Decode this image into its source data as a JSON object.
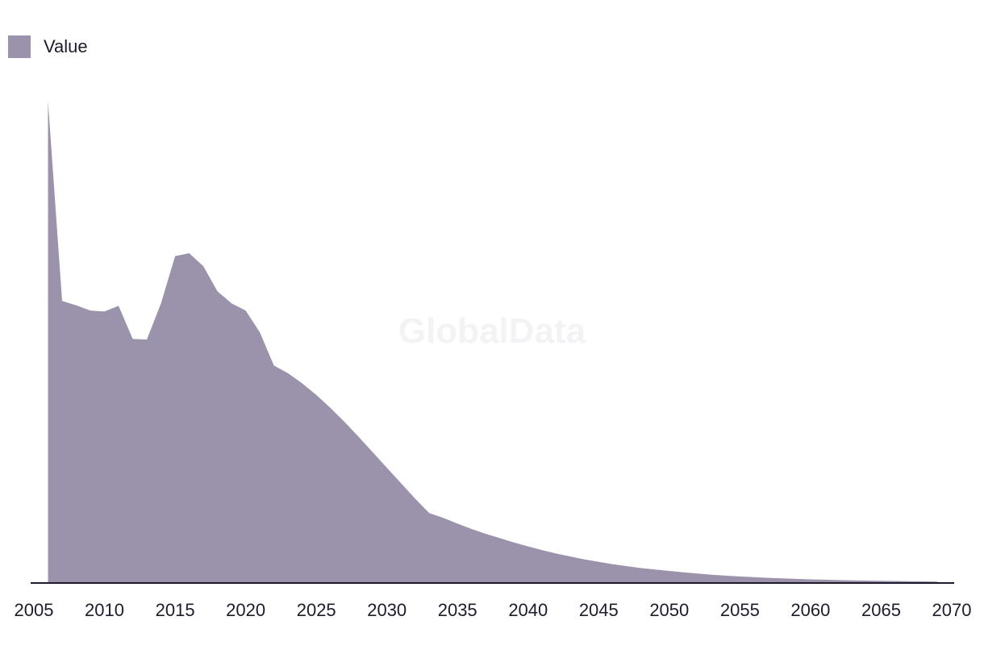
{
  "chart_data": {
    "type": "area",
    "watermark": "GlobalData",
    "series": [
      {
        "name": "Value",
        "color": "#9b93ab",
        "x": [
          2006,
          2007,
          2008,
          2009,
          2010,
          2011,
          2012,
          2013,
          2014,
          2015,
          2016,
          2017,
          2018,
          2019,
          2020,
          2021,
          2022,
          2023,
          2024,
          2025,
          2026,
          2027,
          2028,
          2029,
          2030,
          2031,
          2032,
          2033,
          2034,
          2035,
          2036,
          2037,
          2038,
          2039,
          2040,
          2041,
          2042,
          2043,
          2044,
          2045,
          2046,
          2047,
          2048,
          2049,
          2050,
          2051,
          2052,
          2053,
          2054,
          2055,
          2056,
          2057,
          2058,
          2059,
          2060,
          2061,
          2062,
          2063,
          2064,
          2065,
          2066,
          2067,
          2068,
          2069
        ],
        "values": [
          100,
          58.5,
          57.6,
          56.5,
          56.3,
          57.5,
          50.6,
          50.5,
          58,
          67.8,
          68.4,
          65.7,
          60.5,
          58,
          56.5,
          52,
          45.1,
          43.5,
          41.4,
          39,
          36.3,
          33.4,
          30.3,
          27.1,
          23.9,
          20.7,
          17.5,
          14.5,
          13.5,
          12.3,
          11.2,
          10.2,
          9.3,
          8.4,
          7.6,
          6.8,
          6.1,
          5.5,
          4.9,
          4.4,
          3.9,
          3.5,
          3.1,
          2.8,
          2.5,
          2.2,
          1.95,
          1.72,
          1.52,
          1.35,
          1.2,
          1.07,
          0.95,
          0.85,
          0.76,
          0.68,
          0.61,
          0.55,
          0.5,
          0.45,
          0.41,
          0.37,
          0.34,
          0.3
        ]
      }
    ],
    "xlim": [
      2005,
      2070
    ],
    "ylim": [
      0,
      100
    ],
    "x_tick_labels": [
      "2005",
      "2010",
      "2015",
      "2020",
      "2025",
      "2030",
      "2035",
      "2040",
      "2045",
      "2050",
      "2055",
      "2060",
      "2065",
      "2070"
    ],
    "grid": false,
    "legend_position": "top-left"
  }
}
